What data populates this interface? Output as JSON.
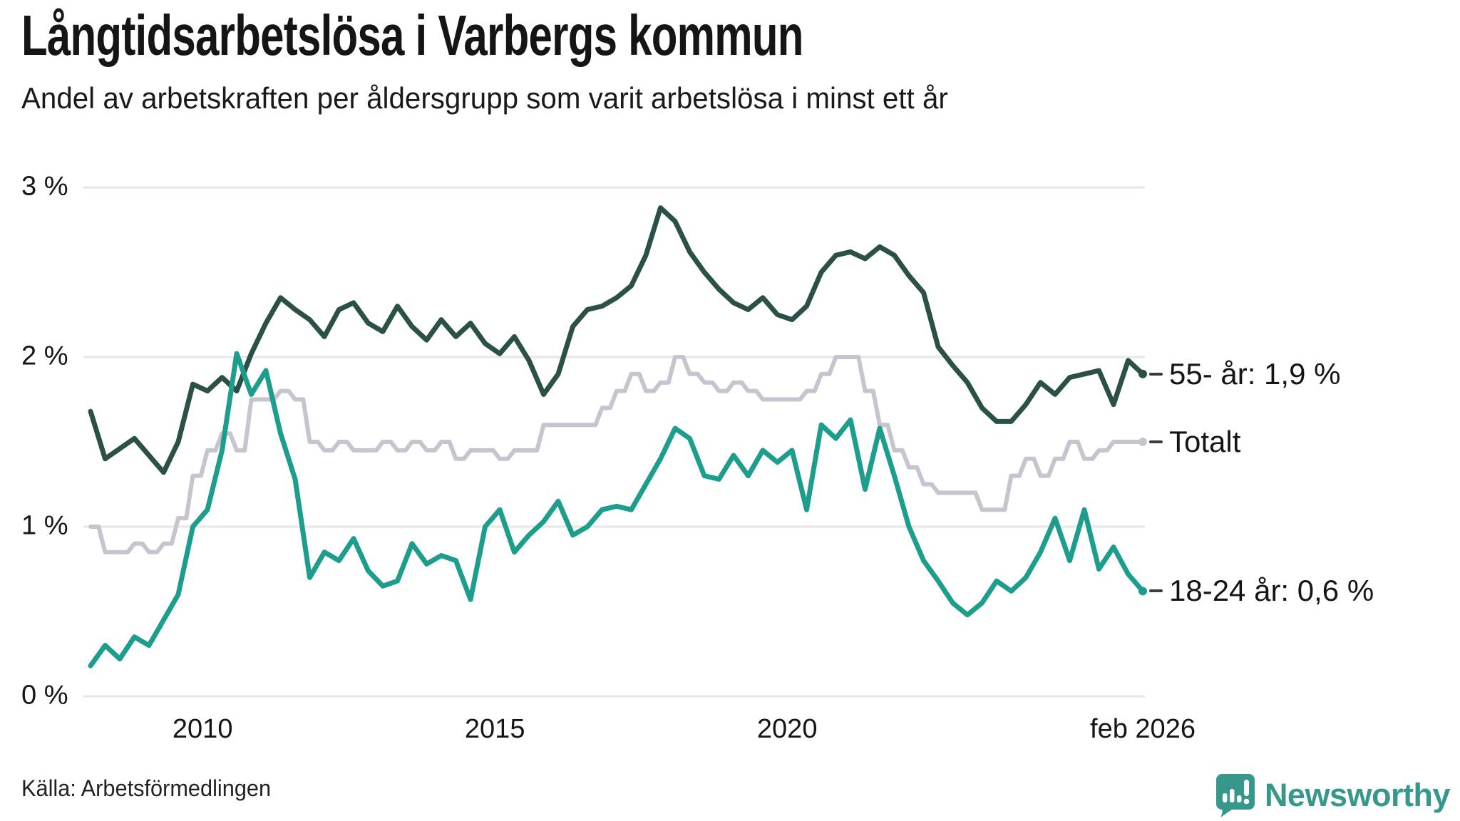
{
  "title": "Långtidsarbetslösa i Varbergs kommun",
  "subtitle": "Andel av arbetskraften per åldersgrupp som varit arbetslösa i minst ett år",
  "source": "Källa: Arbetsförmedlingen",
  "brand": {
    "name": "Newsworthy",
    "color": "#35988b"
  },
  "colors": {
    "background": "#ffffff",
    "grid": "#e7e7e7",
    "text": "#151515",
    "series_55": "#2b5047",
    "series_total": "#c6c4ce",
    "series_18_24": "#1d9e8d"
  },
  "chart_data": {
    "type": "line",
    "title": "Långtidsarbetslösa i Varbergs kommun",
    "subtitle": "Andel av arbetskraften per åldersgrupp som varit arbetslösa i minst ett år",
    "unit": "% av arbetskraften",
    "x_range": {
      "start": "feb 2008",
      "end": "feb 2026",
      "points_per_year": 4
    },
    "ylim": [
      0,
      3
    ],
    "grid": true,
    "y_tick_labels": [
      "3 %",
      "2 %",
      "1 %",
      "0 %"
    ],
    "y_tick_values": [
      3,
      2,
      1,
      0
    ],
    "x_tick_labels": [
      "2010",
      "2015",
      "2020",
      "feb 2026"
    ],
    "x_tick_years": [
      2010.0,
      2015.0,
      2020.0,
      2026.083
    ],
    "series": [
      {
        "name": "55- år",
        "label": "55- år: 1,9 %",
        "last_value_text": "1,9 %",
        "color": "#2b5047",
        "step": false,
        "values": [
          1.68,
          1.4,
          1.46,
          1.52,
          1.42,
          1.32,
          1.5,
          1.84,
          1.8,
          1.88,
          1.8,
          2.02,
          2.2,
          2.35,
          2.28,
          2.22,
          2.12,
          2.28,
          2.32,
          2.2,
          2.15,
          2.3,
          2.18,
          2.1,
          2.22,
          2.12,
          2.2,
          2.08,
          2.02,
          2.12,
          1.98,
          1.78,
          1.9,
          2.18,
          2.28,
          2.3,
          2.35,
          2.42,
          2.6,
          2.88,
          2.8,
          2.62,
          2.5,
          2.4,
          2.32,
          2.28,
          2.35,
          2.25,
          2.22,
          2.3,
          2.5,
          2.6,
          2.62,
          2.58,
          2.65,
          2.6,
          2.48,
          2.38,
          2.06,
          1.95,
          1.85,
          1.7,
          1.62,
          1.62,
          1.72,
          1.85,
          1.78,
          1.88,
          1.9,
          1.92,
          1.72,
          1.98,
          1.9
        ]
      },
      {
        "name": "Totalt",
        "label": "Totalt",
        "last_value_text": "1,5 %",
        "color": "#c6c4ce",
        "step": true,
        "values": [
          1.0,
          0.85,
          0.85,
          0.9,
          0.85,
          0.9,
          1.05,
          1.3,
          1.45,
          1.55,
          1.45,
          1.75,
          1.75,
          1.8,
          1.75,
          1.5,
          1.45,
          1.5,
          1.45,
          1.45,
          1.5,
          1.45,
          1.5,
          1.45,
          1.5,
          1.4,
          1.45,
          1.45,
          1.4,
          1.45,
          1.45,
          1.6,
          1.6,
          1.6,
          1.6,
          1.7,
          1.8,
          1.9,
          1.8,
          1.85,
          2.0,
          1.9,
          1.85,
          1.8,
          1.85,
          1.8,
          1.75,
          1.75,
          1.75,
          1.8,
          1.9,
          2.0,
          2.0,
          1.8,
          1.6,
          1.45,
          1.35,
          1.25,
          1.2,
          1.2,
          1.2,
          1.1,
          1.1,
          1.3,
          1.4,
          1.3,
          1.4,
          1.5,
          1.4,
          1.45,
          1.5,
          1.5,
          1.5
        ]
      },
      {
        "name": "18-24 år",
        "label": "18-24 år: 0,6 %",
        "last_value_text": "0,6 %",
        "color": "#1d9e8d",
        "step": false,
        "values": [
          0.18,
          0.3,
          0.22,
          0.35,
          0.3,
          0.45,
          0.6,
          1.0,
          1.1,
          1.45,
          2.02,
          1.78,
          1.92,
          1.55,
          1.28,
          0.7,
          0.85,
          0.8,
          0.93,
          0.74,
          0.65,
          0.68,
          0.9,
          0.78,
          0.83,
          0.8,
          0.57,
          1.0,
          1.1,
          0.85,
          0.95,
          1.03,
          1.15,
          0.95,
          1.0,
          1.1,
          1.12,
          1.1,
          1.25,
          1.4,
          1.58,
          1.52,
          1.3,
          1.28,
          1.42,
          1.3,
          1.45,
          1.38,
          1.45,
          1.1,
          1.6,
          1.52,
          1.63,
          1.22,
          1.58,
          1.3,
          1.0,
          0.8,
          0.68,
          0.55,
          0.48,
          0.55,
          0.68,
          0.62,
          0.7,
          0.85,
          1.05,
          0.8,
          1.1,
          0.75,
          0.88,
          0.72,
          0.62
        ]
      }
    ],
    "legend_position": "right-of-line-ends"
  }
}
